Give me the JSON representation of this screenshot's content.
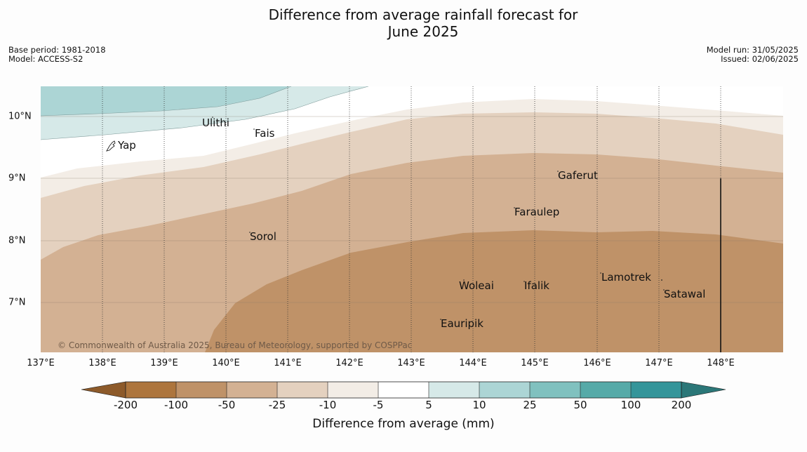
{
  "title_line1": "Difference from average rainfall forecast for",
  "title_line2": "June 2025",
  "base_period": "Base period: 1981-2018",
  "model": "Model: ACCESS-S2",
  "model_run": "Model run: 31/05/2025",
  "issued": "Issued: 02/06/2025",
  "copyright": "© Commonwealth of Australia 2025, Bureau of Meteorology, supported by COSPPac",
  "lat_labels": [
    "10°N",
    "9°N",
    "8°N",
    "7°N"
  ],
  "lon_labels": [
    "137°E",
    "138°E",
    "139°E",
    "140°E",
    "141°E",
    "142°E",
    "143°E",
    "144°E",
    "145°E",
    "146°E",
    "147°E",
    "148°E"
  ],
  "places": [
    "Ulithi",
    "Fais",
    "Yap",
    "Gaferut",
    "Faraulep",
    "Sorol",
    "Woleai",
    "Ifalik",
    "Lamotrek",
    "Satawal",
    "Eauripik"
  ],
  "colorbar": {
    "labels": [
      "-200",
      "-100",
      "-50",
      "-25",
      "-10",
      "-5",
      "5",
      "10",
      "25",
      "50",
      "100",
      "200"
    ],
    "colors": [
      "#8d5a2a",
      "#ad753d",
      "#bf9268",
      "#d3b193",
      "#e4d1bf",
      "#f3ede6",
      "#ffffff",
      "#d6e9e8",
      "#acd5d5",
      "#80c1bf",
      "#56aaa8",
      "#34959a",
      "#2b7778"
    ],
    "title": "Difference from average (mm)"
  }
}
